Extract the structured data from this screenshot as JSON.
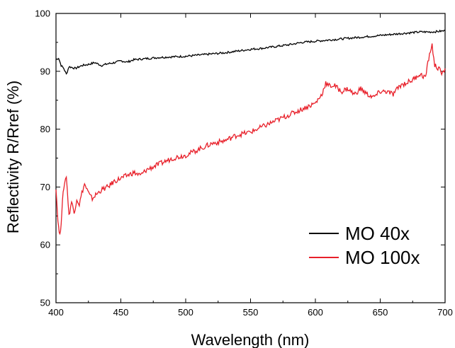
{
  "chart_data": {
    "type": "line",
    "xlabel": "Wavelength (nm)",
    "ylabel": "Reflectivity R/Rref (%)",
    "xlim": [
      400,
      700
    ],
    "ylim": [
      50,
      100
    ],
    "xticks": [
      400,
      450,
      500,
      550,
      600,
      650,
      700
    ],
    "xtick_labels": [
      "400",
      "450",
      "500",
      "550",
      "600",
      "650",
      "700"
    ],
    "yticks": [
      50,
      60,
      70,
      80,
      90,
      100
    ],
    "ytick_labels": [
      "50",
      "60",
      "70",
      "80",
      "90",
      "100"
    ],
    "grid": false,
    "legend_position": "bottom-right",
    "series": [
      {
        "name": "MO 40x",
        "color": "#000000",
        "x": [
          400,
          402,
          404,
          406,
          408,
          410,
          415,
          420,
          425,
          430,
          435,
          440,
          445,
          450,
          455,
          460,
          470,
          480,
          490,
          500,
          510,
          520,
          530,
          540,
          550,
          560,
          570,
          580,
          590,
          600,
          610,
          620,
          630,
          640,
          650,
          660,
          670,
          680,
          690,
          700
        ],
        "y": [
          92.0,
          92.3,
          91.0,
          90.5,
          89.5,
          90.8,
          90.5,
          91.0,
          91.2,
          91.5,
          91.0,
          91.3,
          91.5,
          91.8,
          91.6,
          92.0,
          92.2,
          92.4,
          92.5,
          92.6,
          92.8,
          93.0,
          93.2,
          93.5,
          93.8,
          94.0,
          94.3,
          94.6,
          95.0,
          95.2,
          95.4,
          95.6,
          95.8,
          96.0,
          96.2,
          96.4,
          96.6,
          96.8,
          96.8,
          97.0
        ]
      },
      {
        "name": "MO 100x",
        "color": "#e8202a",
        "x": [
          400,
          401,
          402,
          403,
          404,
          405,
          406,
          408,
          410,
          412,
          414,
          416,
          418,
          420,
          422,
          424,
          426,
          428,
          430,
          435,
          440,
          445,
          450,
          455,
          460,
          465,
          470,
          480,
          490,
          500,
          510,
          520,
          530,
          540,
          550,
          560,
          570,
          580,
          590,
          600,
          605,
          608,
          610,
          615,
          620,
          625,
          630,
          635,
          640,
          645,
          650,
          655,
          660,
          665,
          670,
          675,
          680,
          685,
          688,
          690,
          692,
          695,
          698,
          700
        ],
        "y": [
          70.0,
          66.0,
          63.0,
          61.5,
          64.0,
          67.5,
          70.0,
          72.0,
          65.0,
          67.5,
          65.5,
          68.0,
          67.0,
          69.0,
          70.5,
          69.5,
          68.5,
          68.0,
          68.5,
          69.5,
          70.0,
          71.0,
          71.5,
          72.0,
          72.5,
          72.0,
          73.0,
          74.0,
          75.0,
          75.5,
          76.5,
          77.5,
          78.0,
          79.0,
          79.5,
          80.5,
          81.5,
          82.5,
          83.5,
          84.5,
          86.0,
          88.0,
          87.5,
          87.5,
          86.5,
          87.0,
          86.0,
          87.0,
          86.0,
          85.5,
          86.5,
          86.5,
          86.0,
          87.5,
          88.0,
          88.5,
          89.5,
          89.0,
          93.0,
          94.5,
          91.0,
          90.5,
          89.5,
          90.5
        ]
      }
    ]
  }
}
